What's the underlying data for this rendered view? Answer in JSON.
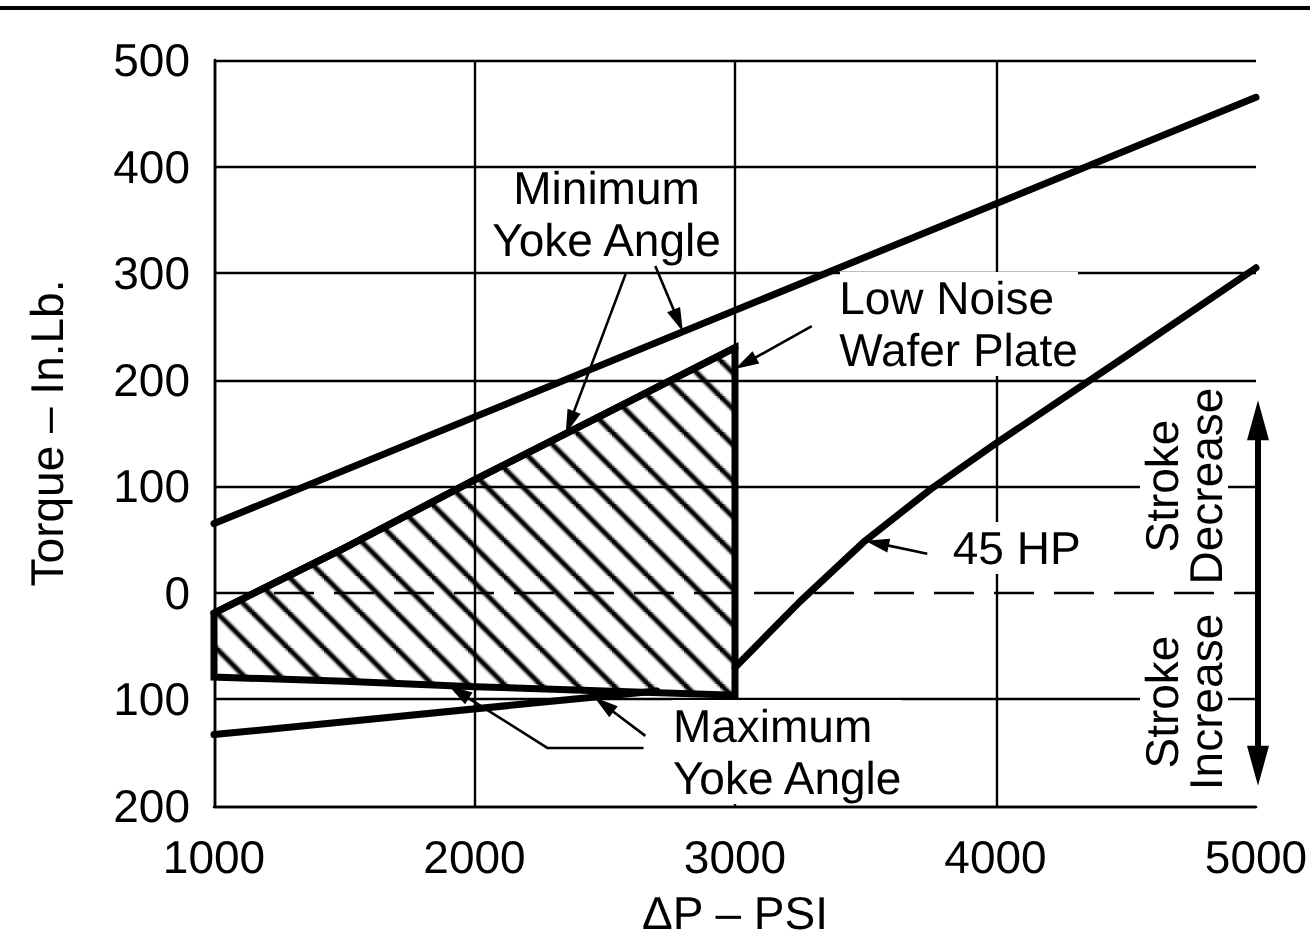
{
  "chart_data": {
    "type": "line",
    "xlabel": "ΔP – PSI",
    "ylabel": "Torque – In.Lb.",
    "xlim": [
      1000,
      5000
    ],
    "xticks": [
      1000,
      2000,
      3000,
      4000,
      5000
    ],
    "ylim": [
      -200,
      500
    ],
    "yticks": [
      {
        "value": -200,
        "label": "200"
      },
      {
        "value": -100,
        "label": "100"
      },
      0,
      100,
      200,
      300,
      400,
      500
    ],
    "grid": true,
    "marker": "none",
    "ref_lines": [
      {
        "axis": "y",
        "value": 0,
        "line_style": "dashed",
        "color": "#000000"
      }
    ],
    "annotations": [
      {
        "text": "Minimum Yoke Angle",
        "x": 2800,
        "y": 245
      },
      {
        "text": "Low Noise Wafer Plate",
        "x": 3000,
        "y": 210
      },
      {
        "text": "45 HP",
        "x": 3500,
        "y": 49
      },
      {
        "text": "Maximum Yoke Angle",
        "x": 2460,
        "y": -98
      },
      "Stroke Decrease",
      "Stroke Increase"
    ],
    "series": [
      {
        "color": "#000000",
        "x": [
          1000,
          5000
        ],
        "values": [
          65,
          465
        ]
      },
      {
        "color": "#000000",
        "x": [
          1000,
          2700
        ],
        "values": [
          -133,
          -92
        ]
      },
      {
        "color": "#000000",
        "x": [
          1000,
          1500,
          2000,
          2500,
          3000
        ],
        "values": [
          -19,
          42,
          106,
          168,
          230
        ],
        "lower": [
          -79,
          -83,
          -88,
          -92,
          -96
        ],
        "upper": [
          -19,
          42,
          106,
          168,
          230
        ]
      },
      {
        "color": "#000000",
        "x": [
          3000,
          3250,
          3500,
          3750,
          4000,
          4500,
          5000
        ],
        "values": [
          -70,
          -8,
          49,
          97,
          140,
          222,
          305
        ]
      }
    ]
  }
}
